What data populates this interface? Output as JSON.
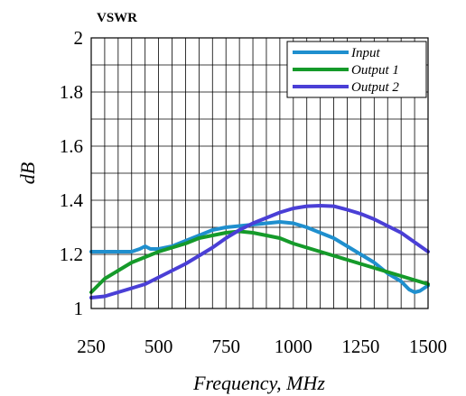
{
  "chart_data": {
    "type": "line",
    "title": "VSWR",
    "xlabel": "Frequency, MHz",
    "ylabel": "dB",
    "xlim": [
      250,
      1500
    ],
    "ylim": [
      1,
      2
    ],
    "xticks": [
      250,
      500,
      750,
      1000,
      1250,
      1500
    ],
    "yticks": [
      1,
      1.2,
      1.4,
      1.6,
      1.8,
      2
    ],
    "ytick_labels": [
      "1",
      "1.2",
      "1.4",
      "1.6",
      "1.8",
      "2"
    ],
    "grid": true,
    "legend_position": "top-right",
    "series": [
      {
        "name": "Input",
        "color": "#1f8fce",
        "x": [
          250,
          300,
          350,
          400,
          430,
          450,
          470,
          500,
          550,
          600,
          650,
          700,
          750,
          800,
          850,
          900,
          950,
          1000,
          1050,
          1100,
          1150,
          1200,
          1250,
          1300,
          1350,
          1400,
          1430,
          1450,
          1470,
          1500
        ],
        "y": [
          1.21,
          1.21,
          1.21,
          1.21,
          1.22,
          1.23,
          1.22,
          1.22,
          1.23,
          1.25,
          1.27,
          1.29,
          1.3,
          1.305,
          1.31,
          1.315,
          1.32,
          1.315,
          1.3,
          1.28,
          1.26,
          1.23,
          1.2,
          1.17,
          1.13,
          1.1,
          1.07,
          1.06,
          1.065,
          1.085
        ]
      },
      {
        "name": "Output 1",
        "color": "#159a2a",
        "x": [
          250,
          300,
          350,
          400,
          450,
          500,
          550,
          600,
          650,
          700,
          750,
          800,
          850,
          900,
          950,
          1000,
          1050,
          1100,
          1150,
          1200,
          1250,
          1300,
          1350,
          1400,
          1450,
          1500
        ],
        "y": [
          1.06,
          1.11,
          1.14,
          1.17,
          1.19,
          1.21,
          1.225,
          1.24,
          1.26,
          1.27,
          1.28,
          1.285,
          1.28,
          1.27,
          1.26,
          1.24,
          1.225,
          1.21,
          1.195,
          1.18,
          1.165,
          1.15,
          1.135,
          1.12,
          1.105,
          1.09
        ]
      },
      {
        "name": "Output 2",
        "color": "#4a3fd6",
        "x": [
          250,
          300,
          350,
          400,
          450,
          500,
          550,
          600,
          650,
          700,
          750,
          800,
          850,
          900,
          950,
          1000,
          1050,
          1100,
          1150,
          1200,
          1250,
          1300,
          1350,
          1400,
          1450,
          1500
        ],
        "y": [
          1.04,
          1.045,
          1.06,
          1.075,
          1.09,
          1.115,
          1.14,
          1.165,
          1.195,
          1.225,
          1.26,
          1.29,
          1.315,
          1.335,
          1.355,
          1.37,
          1.378,
          1.38,
          1.378,
          1.365,
          1.35,
          1.33,
          1.305,
          1.28,
          1.245,
          1.21
        ]
      }
    ]
  }
}
